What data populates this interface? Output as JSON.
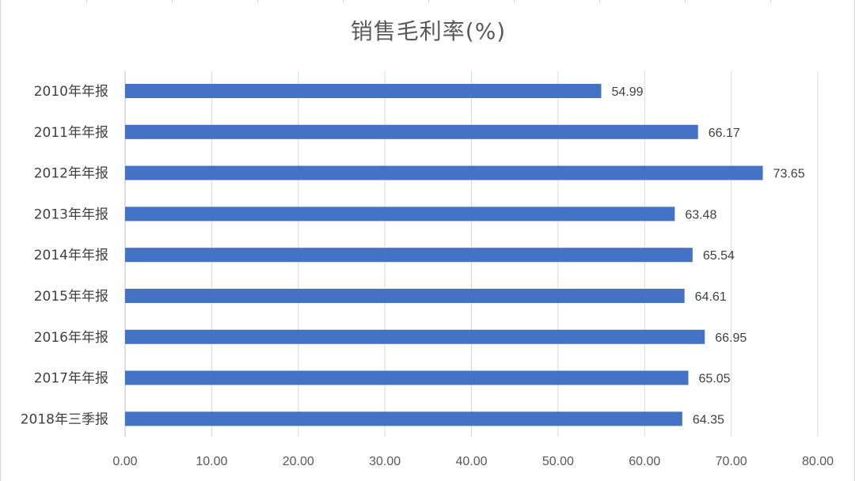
{
  "chart_data": {
    "type": "bar",
    "orientation": "horizontal",
    "title": "销售毛利率(%)",
    "xlabel": "",
    "ylabel": "",
    "categories": [
      "2010年年报",
      "2011年年报",
      "2012年年报",
      "2013年年报",
      "2014年年报",
      "2015年年报",
      "2016年年报",
      "2017年年报",
      "2018年三季报"
    ],
    "values": [
      54.99,
      66.17,
      73.65,
      63.48,
      65.54,
      64.61,
      66.95,
      65.05,
      64.35
    ],
    "data_labels": [
      "54.99",
      "66.17",
      "73.65",
      "63.48",
      "65.54",
      "64.61",
      "66.95",
      "65.05",
      "64.35"
    ],
    "xlim": [
      0,
      80
    ],
    "x_ticks": [
      "0.00",
      "10.00",
      "20.00",
      "30.00",
      "40.00",
      "50.00",
      "60.00",
      "70.00",
      "80.00"
    ],
    "grid": true,
    "legend": "none",
    "bar_color": "#4472C4",
    "grid_color": "#d9d9d9"
  }
}
